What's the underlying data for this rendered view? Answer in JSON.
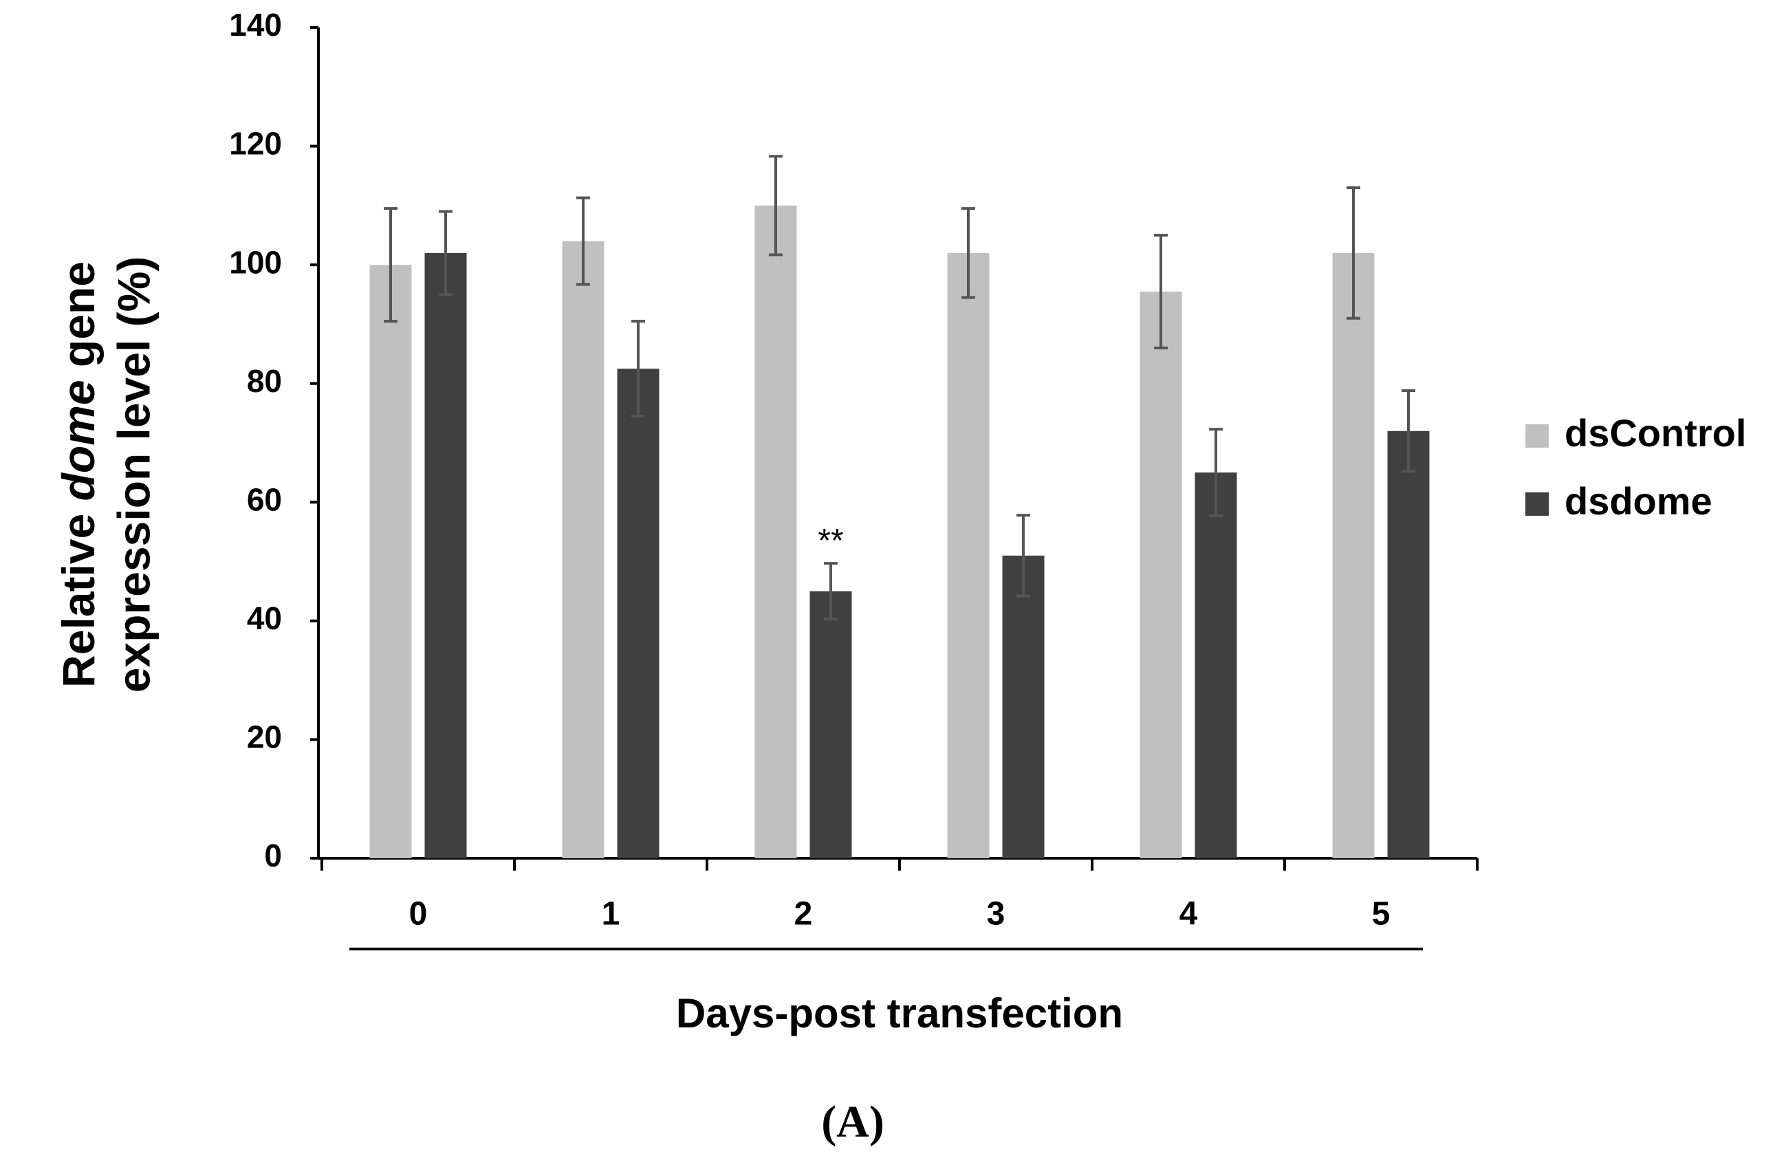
{
  "chart_data": {
    "type": "bar",
    "y_label": {
      "line1": [
        "Relative",
        "dome",
        "gene"
      ],
      "line2": "expression level (%)"
    },
    "x_label": "Days-post transfection",
    "panel_label": "(A)",
    "categories": [
      "0",
      "1",
      "2",
      "3",
      "4",
      "5"
    ],
    "series": [
      {
        "name": "dsControl",
        "color": "#c0c0c0",
        "values": [
          100,
          104,
          110,
          102,
          95.5,
          102
        ],
        "errors": [
          9.5,
          7.3,
          8.3,
          7.5,
          9.5,
          11
        ]
      },
      {
        "name": "dsdome",
        "color": "#404040",
        "values": [
          102,
          82.5,
          45,
          51,
          65,
          72
        ],
        "errors": [
          7,
          8,
          4.7,
          6.8,
          7.3,
          6.8
        ]
      }
    ],
    "annotations": [
      {
        "text": "**",
        "series": 1,
        "category": 2
      }
    ],
    "ylim": [
      0,
      140
    ],
    "yticks": [
      0,
      20,
      40,
      60,
      80,
      100,
      120,
      140
    ],
    "error_color": "#555555",
    "legend": "right"
  }
}
